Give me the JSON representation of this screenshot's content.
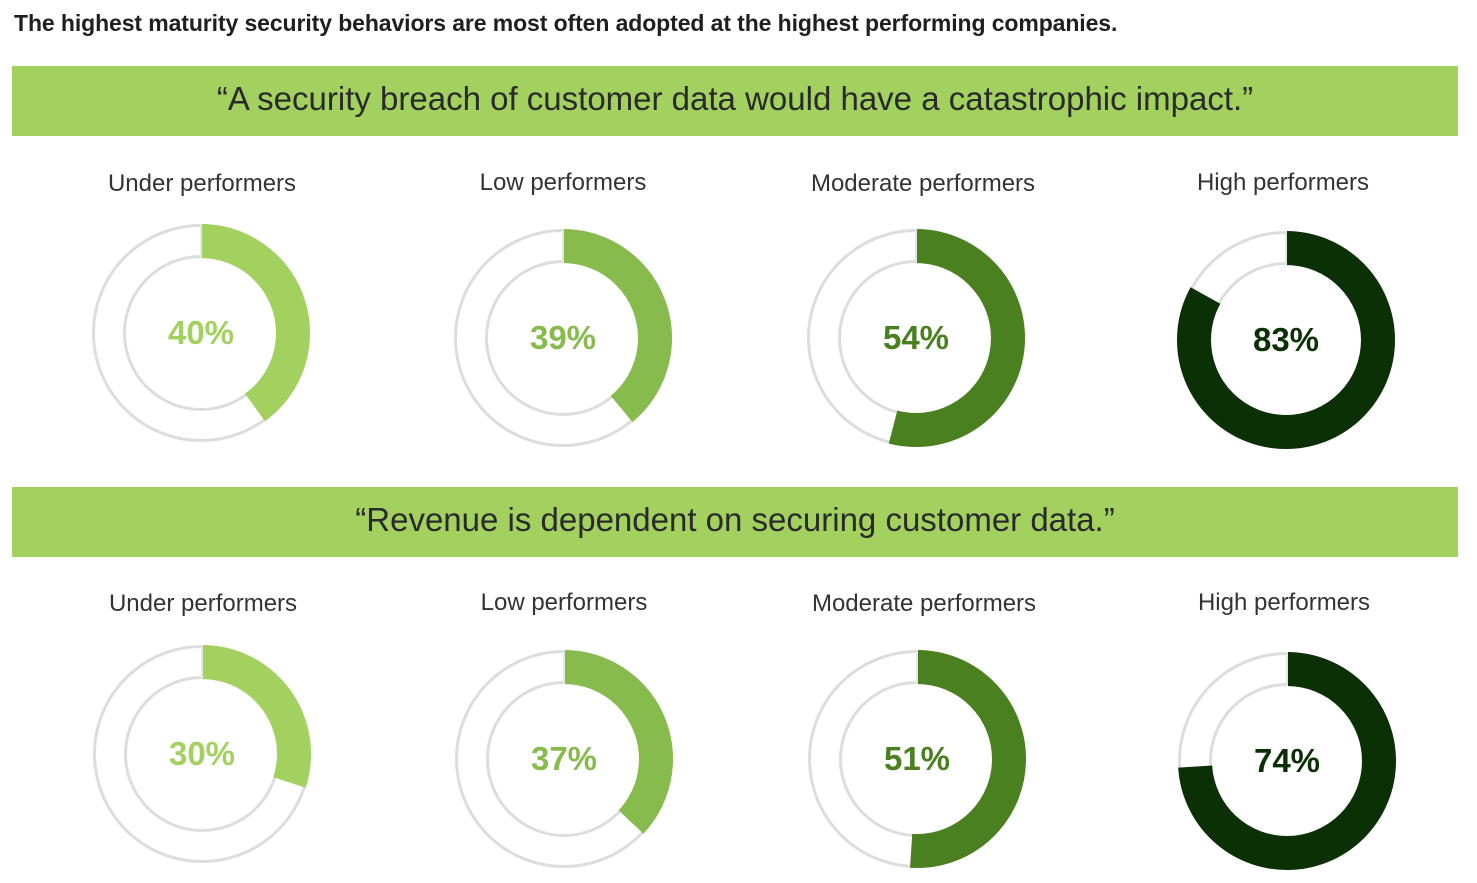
{
  "chart_data": {
    "type": "donut",
    "title": "The highest maturity security behaviors are most often adopted at the highest performing companies.",
    "legend_labels": [
      "Under performers",
      "Low performers",
      "Moderate performers",
      "High performers"
    ],
    "colors": [
      "#a3d160",
      "#87bb4d",
      "#4a801f",
      "#0b3006"
    ],
    "track_color": "#dddddd",
    "panels": [
      {
        "statement": "“A security breach of customer data would have a catastrophic impact.”",
        "categories": [
          "Under performers",
          "Low performers",
          "Moderate performers",
          "High performers"
        ],
        "values": [
          40,
          39,
          54,
          83
        ],
        "labels": [
          "40%",
          "39%",
          "54%",
          "83%"
        ]
      },
      {
        "statement": "“Revenue is dependent on securing customer data.”",
        "categories": [
          "Under performers",
          "Low performers",
          "Moderate performers",
          "High performers"
        ],
        "values": [
          30,
          37,
          51,
          74
        ],
        "labels": [
          "30%",
          "37%",
          "51%",
          "74%"
        ]
      }
    ]
  }
}
